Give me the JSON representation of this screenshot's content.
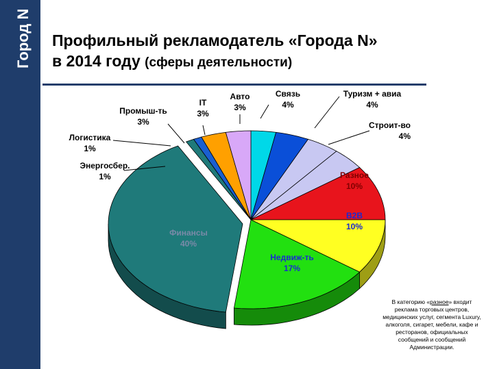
{
  "brand": {
    "logo_text": "Город N",
    "color": "#1f3d6b"
  },
  "title": {
    "line1": "Профильный рекламодатель «Города N»",
    "line2_main": "в 2014 году ",
    "line2_sub": "(сферы деятельности)"
  },
  "note": {
    "prefix": "В категорию «",
    "link": "разное",
    "suffix": "» входит реклама торговых центров, медицинских услуг, сегмента Luxury, алкоголя, сигарет, мебели, кафе и ресторанов, официальных сообщений и сообщений Администрации."
  },
  "chart_data": {
    "type": "pie",
    "title": "Профильный рекламодатель «Города N» в 2014 году (сферы деятельности)",
    "series": [
      {
        "name": "Авто",
        "value": 3,
        "label": "3%",
        "color": "#00d8e8",
        "label_color": "#000000"
      },
      {
        "name": "Связь",
        "value": 4,
        "label": "4%",
        "color": "#0a4fd8",
        "label_color": "#000000"
      },
      {
        "name": "Туризм + авиа",
        "value": 4,
        "label": "4%",
        "color": "#c8c8f2",
        "label_color": "#000000"
      },
      {
        "name": "Строит-во",
        "value": 4,
        "label": "4%",
        "color": "#c8c8f2",
        "label_color": "#000000"
      },
      {
        "name": "Разное",
        "value": 10,
        "label": "10%",
        "color": "#e8141c",
        "label_color": "#800000"
      },
      {
        "name": "В2В",
        "value": 10,
        "label": "10%",
        "color": "#ffff22",
        "label_color": "#1a2ad0"
      },
      {
        "name": "Недвиж-ть",
        "value": 17,
        "label": "17%",
        "color": "#22e010",
        "label_color": "#1a2ad0"
      },
      {
        "name": "Финансы",
        "value": 40,
        "label": "40%",
        "color": "#1f7a7a",
        "label_color": "#7a8aa8"
      },
      {
        "name": "Энергосбер.",
        "value": 1,
        "label": "1%",
        "color": "#1f7a7a",
        "label_color": "#000000"
      },
      {
        "name": "Логистика",
        "value": 1,
        "label": "1%",
        "color": "#1a5fd0",
        "label_color": "#000000"
      },
      {
        "name": "Промыш-ть",
        "value": 3,
        "label": "3%",
        "color": "#ffa000",
        "label_color": "#000000"
      },
      {
        "name": "IT",
        "value": 3,
        "label": "3%",
        "color": "#d8a8f8",
        "label_color": "#000000"
      }
    ]
  }
}
